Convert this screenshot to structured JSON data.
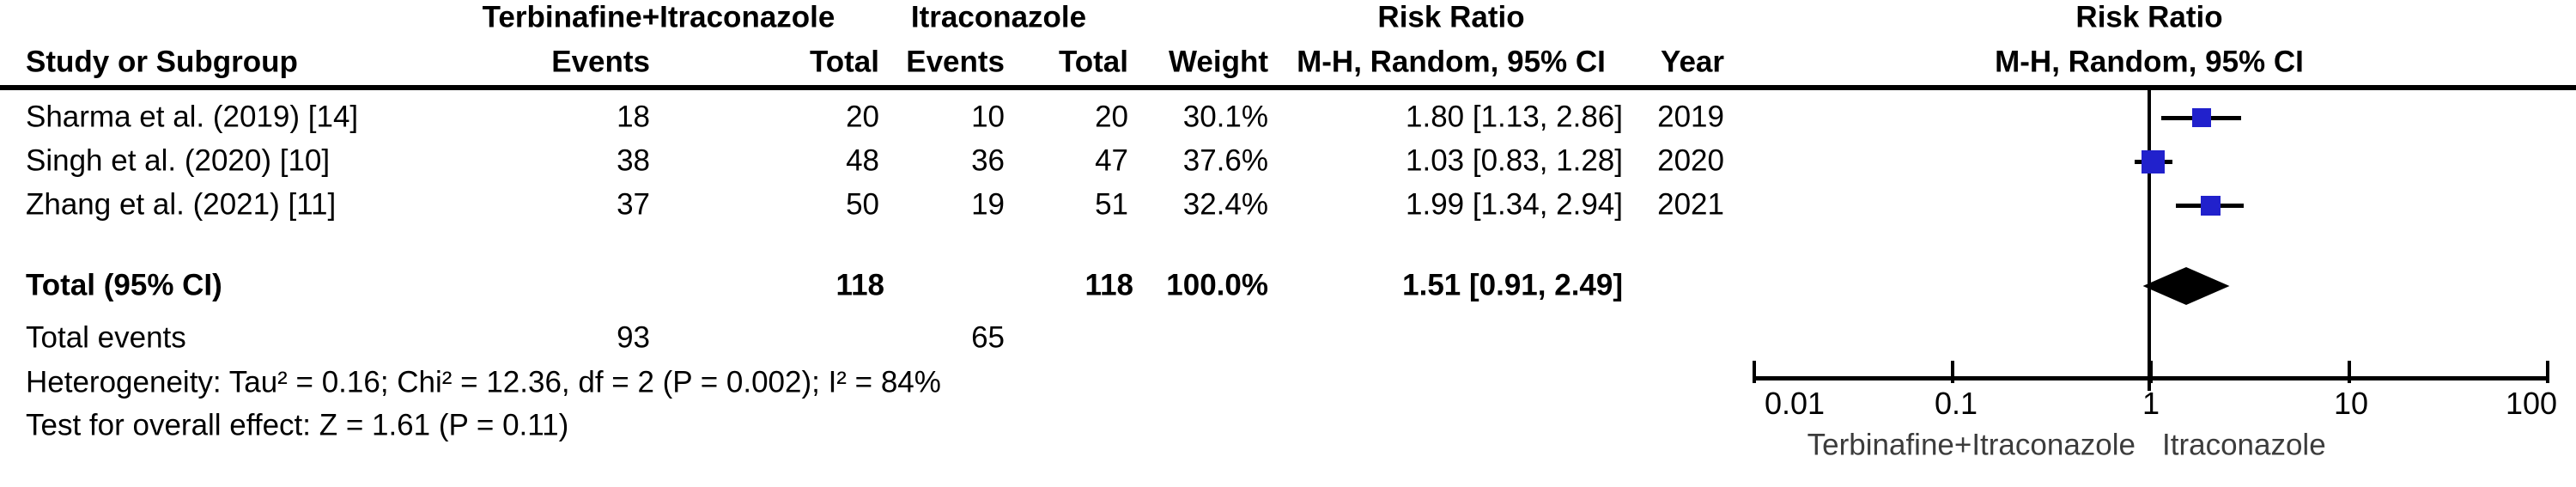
{
  "header": {
    "group_treatment": "Terbinafine+Itraconazole",
    "group_control": "Itraconazole",
    "risk_ratio_col_title": "Risk Ratio",
    "risk_ratio_plot_title": "Risk Ratio",
    "study": "Study or Subgroup",
    "events": "Events",
    "total": "Total",
    "weight": "Weight",
    "mh_random": "M-H, Random, 95% CI",
    "year": "Year",
    "mh_random_plot": "M-H, Random, 95% CI"
  },
  "table": {
    "rows": [
      {
        "study": "Sharma et al. (2019) [14]",
        "events_t": "18",
        "total_t": "20",
        "events_c": "10",
        "total_c": "20",
        "weight": "30.1%",
        "rr_ci": "1.80 [1.13, 2.86]",
        "year": "2019"
      },
      {
        "study": "Singh et al. (2020) [10]",
        "events_t": "38",
        "total_t": "48",
        "events_c": "36",
        "total_c": "47",
        "weight": "37.6%",
        "rr_ci": "1.03 [0.83, 1.28]",
        "year": "2020"
      },
      {
        "study": "Zhang et al. (2021) [11]",
        "events_t": "37",
        "total_t": "50",
        "events_c": "19",
        "total_c": "51",
        "weight": "32.4%",
        "rr_ci": "1.99 [1.34, 2.94]",
        "year": "2021"
      }
    ],
    "total_row": {
      "label": "Total (95% CI)",
      "total_t": "118",
      "total_c": "118",
      "weight": "100.0%",
      "rr_ci": "1.51 [0.91, 2.49]"
    },
    "total_events": {
      "label": "Total events",
      "events_t": "93",
      "events_c": "65"
    },
    "heterogeneity": "Heterogeneity: Tau² = 0.16; Chi² = 12.36, df = 2 (P = 0.002); I² = 84%",
    "overall_effect": "Test for overall effect: Z = 1.61 (P = 0.11)"
  },
  "plot": {
    "tick_labels": [
      "0.01",
      "0.1",
      "1",
      "10",
      "100"
    ],
    "favours_left": "Terbinafine+Itraconazole",
    "favours_right": "Itraconazole",
    "colors": {
      "square": "#2121CC",
      "diamond": "#000000",
      "lines": "#000000"
    }
  },
  "chart_data": {
    "type": "forest",
    "effect_measure": "Risk Ratio",
    "method": "M-H, Random, 95% CI",
    "x_scale": "log",
    "x_ticks": [
      0.01,
      0.1,
      1,
      10,
      100
    ],
    "xlim": [
      0.01,
      100
    ],
    "studies": [
      {
        "name": "Sharma et al. (2019) [14]",
        "events_treatment": 18,
        "total_treatment": 20,
        "events_control": 10,
        "total_control": 20,
        "weight_pct": 30.1,
        "rr": 1.8,
        "ci_low": 1.13,
        "ci_high": 2.86,
        "year": 2019
      },
      {
        "name": "Singh et al. (2020) [10]",
        "events_treatment": 38,
        "total_treatment": 48,
        "events_control": 36,
        "total_control": 47,
        "weight_pct": 37.6,
        "rr": 1.03,
        "ci_low": 0.83,
        "ci_high": 1.28,
        "year": 2020
      },
      {
        "name": "Zhang et al. (2021) [11]",
        "events_treatment": 37,
        "total_treatment": 50,
        "events_control": 19,
        "total_control": 51,
        "weight_pct": 32.4,
        "rr": 1.99,
        "ci_low": 1.34,
        "ci_high": 2.94,
        "year": 2021
      }
    ],
    "total": {
      "rr": 1.51,
      "ci_low": 0.91,
      "ci_high": 2.49,
      "total_treatment": 118,
      "total_control": 118,
      "events_treatment": 93,
      "events_control": 65,
      "weight_pct": 100.0
    },
    "heterogeneity": {
      "tau2": 0.16,
      "chi2": 12.36,
      "df": 2,
      "p": 0.002,
      "i2_pct": 84
    },
    "overall_effect": {
      "z": 1.61,
      "p": 0.11
    }
  }
}
